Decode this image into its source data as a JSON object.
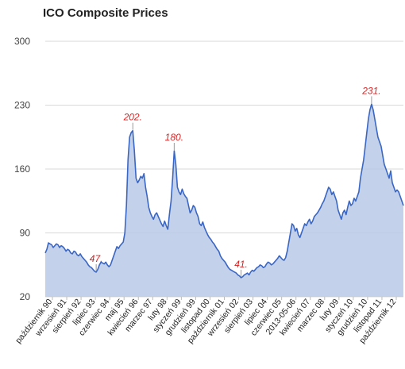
{
  "chart_data": {
    "type": "area",
    "title": "ICO Composite Prices",
    "xlabel": "",
    "ylabel": "",
    "yticks": [
      20,
      90,
      160,
      230,
      300
    ],
    "ylim": [
      20,
      300
    ],
    "grid": true,
    "legend": "none",
    "colors": {
      "line": "#3a66c4",
      "fill": "#b9c9e6",
      "grid": "#d9d9d9",
      "annotation": "#dd2222"
    },
    "x_labels": [
      "październik 90",
      "wrzesień 91",
      "sierpień 92",
      "lipiec 93",
      "czerwiec 94",
      "maj 95",
      "kwiecień 96",
      "marzec 97",
      "luty 98",
      "styczeń 99",
      "grudzień 99",
      "listopad 00",
      "październik 01",
      "wrzesień 02",
      "sierpień 03",
      "lipiec 04",
      "czerwiec 05",
      "2013-05-06",
      "kwiecień 07",
      "marzec 08",
      "luty 09",
      "styczeń 10",
      "grudzień 10",
      "listopad 11",
      "październik 12"
    ],
    "series": [
      {
        "values": [
          68,
          72,
          79,
          78,
          77,
          74,
          76,
          78,
          77,
          74,
          76,
          75,
          73,
          70,
          72,
          71,
          68,
          67,
          70,
          69,
          66,
          65,
          67,
          64,
          62,
          60,
          58,
          55,
          53,
          52,
          50,
          48,
          47,
          50,
          55,
          58,
          57,
          56,
          58,
          55,
          53,
          55,
          60,
          65,
          70,
          75,
          73,
          76,
          78,
          80,
          90,
          120,
          170,
          195,
          200,
          202,
          180,
          150,
          145,
          148,
          152,
          150,
          155,
          140,
          130,
          118,
          112,
          108,
          105,
          110,
          112,
          108,
          104,
          100,
          97,
          103,
          98,
          94,
          110,
          125,
          150,
          180,
          165,
          140,
          135,
          132,
          138,
          133,
          130,
          128,
          120,
          112,
          115,
          120,
          118,
          112,
          108,
          100,
          98,
          102,
          96,
          92,
          88,
          85,
          83,
          80,
          78,
          75,
          72,
          70,
          65,
          62,
          60,
          58,
          55,
          52,
          50,
          49,
          48,
          47,
          46,
          44,
          43,
          41,
          42,
          44,
          45,
          46,
          44,
          47,
          49,
          48,
          50,
          52,
          53,
          55,
          54,
          52,
          53,
          56,
          58,
          57,
          55,
          56,
          58,
          60,
          62,
          65,
          63,
          61,
          60,
          63,
          70,
          80,
          90,
          100,
          98,
          92,
          95,
          88,
          85,
          90,
          95,
          100,
          98,
          102,
          105,
          100,
          103,
          108,
          110,
          112,
          115,
          118,
          122,
          125,
          130,
          135,
          140,
          138,
          132,
          135,
          130,
          125,
          115,
          110,
          105,
          112,
          115,
          110,
          118,
          125,
          120,
          122,
          128,
          125,
          130,
          135,
          150,
          160,
          170,
          185,
          200,
          215,
          225,
          231,
          225,
          215,
          205,
          195,
          190,
          185,
          175,
          165,
          160,
          155,
          150,
          158,
          145,
          140,
          135,
          137,
          135,
          130,
          125,
          120
        ]
      }
    ],
    "annotations": [
      {
        "label": "47.",
        "index": 32,
        "value": 47
      },
      {
        "label": "202.",
        "index": 55,
        "value": 202
      },
      {
        "label": "180.",
        "index": 81,
        "value": 180
      },
      {
        "label": "41.",
        "index": 123,
        "value": 41
      },
      {
        "label": "231.",
        "index": 205,
        "value": 231
      }
    ]
  }
}
